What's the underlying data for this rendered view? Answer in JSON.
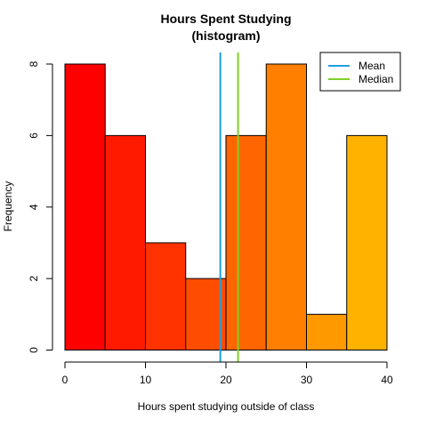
{
  "chart_data": {
    "type": "bar",
    "title_line1": "Hours Spent Studying",
    "title_line2": "(histogram)",
    "xlabel": "Hours spent studying outside of class",
    "ylabel": "Frequency",
    "xlim": [
      0,
      40
    ],
    "ylim": [
      0,
      8
    ],
    "bins": [
      {
        "start": 0,
        "end": 5,
        "count": 8,
        "color": "#FF0000"
      },
      {
        "start": 5,
        "end": 10,
        "count": 6,
        "color": "#FF1A00"
      },
      {
        "start": 10,
        "end": 15,
        "count": 3,
        "color": "#FF3300"
      },
      {
        "start": 15,
        "end": 20,
        "count": 2,
        "color": "#FF4D00"
      },
      {
        "start": 20,
        "end": 25,
        "count": 6,
        "color": "#FF6600"
      },
      {
        "start": 25,
        "end": 30,
        "count": 8,
        "color": "#FF8000"
      },
      {
        "start": 30,
        "end": 35,
        "count": 1,
        "color": "#FF9900"
      },
      {
        "start": 35,
        "end": 40,
        "count": 6,
        "color": "#FFB300"
      }
    ],
    "x_ticks": [
      "0",
      "10",
      "20",
      "30",
      "40"
    ],
    "y_ticks": [
      "0",
      "2",
      "4",
      "6",
      "8"
    ],
    "lines": [
      {
        "name": "Mean",
        "value": 19.3,
        "color": "#1E9FE0"
      },
      {
        "name": "Median",
        "value": 21.5,
        "color": "#7FD12B"
      }
    ],
    "grid": false,
    "legend_position": "top-right"
  }
}
